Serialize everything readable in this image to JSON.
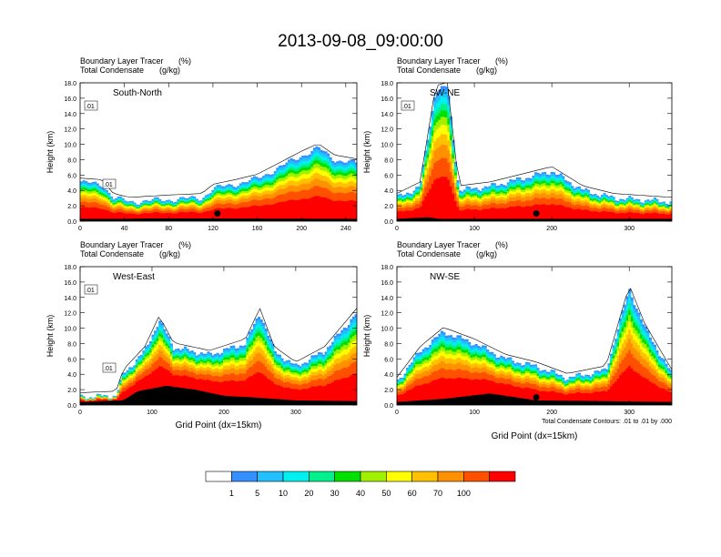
{
  "figure": {
    "title": "2013-09-08_09:00:00",
    "footnote": "Total Condensate Contours: .01 to .01 by .000",
    "colorbar": {
      "levels": [
        "1",
        "5",
        "10",
        "20",
        "30",
        "40",
        "50",
        "60",
        "70",
        "100"
      ],
      "colors": [
        "#ffffff",
        "#3590ff",
        "#22c0ff",
        "#00f0f0",
        "#00f08c",
        "#00e000",
        "#a0f000",
        "#ffff00",
        "#ffc000",
        "#ff9000",
        "#ff5000",
        "#ff0000"
      ]
    }
  },
  "chart_data": [
    {
      "type": "heatmap",
      "panel": "top-left",
      "label_left_line1": "Boundary Layer Tracer",
      "label_right_line1": "(%)",
      "label_left_line2": "Total Condensate",
      "label_right_line2": "(g/kg)",
      "section": "South-North",
      "ylabel": "Height (km)",
      "xlabel": "",
      "xlim": [
        0,
        250
      ],
      "ylim": [
        0,
        18
      ],
      "xticks": [
        "0",
        "40",
        "80",
        "120",
        "160",
        "200",
        "240"
      ],
      "yticks": [
        "0.0",
        "2.0",
        "4.0",
        "6.0",
        "8.0",
        "10.0",
        "12.0",
        "14.0",
        "16.0",
        "18.0"
      ],
      "contour_labels": [
        ".01",
        ".01"
      ],
      "marker_x": 124,
      "marker_y": 1.0,
      "bl_top_km": [
        [
          0,
          5.0
        ],
        [
          20,
          4.8
        ],
        [
          30,
          3.0
        ],
        [
          45,
          2.5
        ],
        [
          80,
          2.8
        ],
        [
          110,
          3.0
        ],
        [
          120,
          4.2
        ],
        [
          140,
          4.8
        ],
        [
          160,
          5.5
        ],
        [
          180,
          7.0
        ],
        [
          200,
          8.5
        ],
        [
          215,
          9.5
        ],
        [
          230,
          8.0
        ],
        [
          250,
          7.5
        ]
      ],
      "terrain_km": [
        [
          0,
          0.3
        ],
        [
          40,
          0.3
        ],
        [
          60,
          0.35
        ],
        [
          120,
          0.35
        ],
        [
          250,
          0.3
        ]
      ]
    },
    {
      "type": "heatmap",
      "panel": "top-right",
      "label_left_line1": "Boundary Layer Tracer",
      "label_right_line1": "(%)",
      "label_left_line2": "Total Condensate",
      "label_right_line2": "(g/kg)",
      "section": "SW-NE",
      "ylabel": "Height (km)",
      "xlabel": "",
      "xlim": [
        0,
        355
      ],
      "ylim": [
        0,
        18
      ],
      "xticks": [
        "0",
        "100",
        "200",
        "300"
      ],
      "yticks": [
        "0.0",
        "2.0",
        "4.0",
        "6.0",
        "8.0",
        "10.0",
        "12.0",
        "14.0",
        "16.0",
        "18.0"
      ],
      "contour_labels": [
        ".01"
      ],
      "marker_x": 180,
      "marker_y": 1.0,
      "bl_top_km": [
        [
          0,
          3.0
        ],
        [
          30,
          4.5
        ],
        [
          50,
          17.0
        ],
        [
          65,
          17.5
        ],
        [
          80,
          4.0
        ],
        [
          120,
          4.5
        ],
        [
          160,
          5.5
        ],
        [
          200,
          6.5
        ],
        [
          240,
          4.0
        ],
        [
          280,
          3.0
        ],
        [
          355,
          2.5
        ]
      ],
      "terrain_km": [
        [
          0,
          0.3
        ],
        [
          40,
          0.5
        ],
        [
          55,
          0.3
        ],
        [
          355,
          0.3
        ]
      ]
    },
    {
      "type": "heatmap",
      "panel": "bottom-left",
      "label_left_line1": "Boundary Layer Tracer",
      "label_right_line1": "(%)",
      "label_left_line2": "Total Condensate",
      "label_right_line2": "(g/kg)",
      "section": "West-East",
      "ylabel": "Height (km)",
      "xlabel": "Grid Point (dx=15km)",
      "xlim": [
        0,
        385
      ],
      "ylim": [
        0,
        18
      ],
      "xticks": [
        "0",
        "100",
        "200",
        "300"
      ],
      "yticks": [
        "0.0",
        "2.0",
        "4.0",
        "6.0",
        "8.0",
        "10.0",
        "12.0",
        "14.0",
        "16.0",
        "18.0"
      ],
      "contour_labels": [
        ".01",
        ".01"
      ],
      "marker_x": 190,
      "marker_y": 1.0,
      "bl_top_km": [
        [
          0,
          1.0
        ],
        [
          50,
          1.2
        ],
        [
          60,
          4.0
        ],
        [
          90,
          7.0
        ],
        [
          110,
          11.0
        ],
        [
          130,
          7.5
        ],
        [
          180,
          6.5
        ],
        [
          230,
          8.0
        ],
        [
          250,
          12.0
        ],
        [
          270,
          7.0
        ],
        [
          300,
          5.0
        ],
        [
          340,
          7.0
        ],
        [
          385,
          12.0
        ]
      ],
      "terrain_km": [
        [
          0,
          0.4
        ],
        [
          60,
          0.6
        ],
        [
          80,
          1.8
        ],
        [
          120,
          2.5
        ],
        [
          160,
          2.0
        ],
        [
          200,
          1.2
        ],
        [
          240,
          1.0
        ],
        [
          300,
          0.6
        ],
        [
          385,
          0.5
        ]
      ]
    },
    {
      "type": "heatmap",
      "panel": "bottom-right",
      "label_left_line1": "Boundary Layer Tracer",
      "label_right_line1": "(%)",
      "label_left_line2": "Total Condensate",
      "label_right_line2": "(g/kg)",
      "section": "NW-SE",
      "ylabel": "Height (km)",
      "xlabel": "Grid Point (dx=15km)",
      "xlim": [
        0,
        355
      ],
      "ylim": [
        0,
        18
      ],
      "xticks": [
        "0",
        "100",
        "200",
        "300"
      ],
      "yticks": [
        "0.0",
        "2.0",
        "4.0",
        "6.0",
        "8.0",
        "10.0",
        "12.0",
        "14.0",
        "16.0",
        "18.0"
      ],
      "contour_labels": [],
      "marker_x": 180,
      "marker_y": 1.0,
      "bl_top_km": [
        [
          0,
          3.0
        ],
        [
          30,
          7.0
        ],
        [
          60,
          9.5
        ],
        [
          100,
          8.0
        ],
        [
          140,
          6.0
        ],
        [
          180,
          5.0
        ],
        [
          220,
          3.5
        ],
        [
          270,
          4.5
        ],
        [
          300,
          15.0
        ],
        [
          320,
          10.0
        ],
        [
          355,
          4.0
        ]
      ],
      "terrain_km": [
        [
          0,
          0.4
        ],
        [
          60,
          0.8
        ],
        [
          120,
          1.5
        ],
        [
          180,
          0.6
        ],
        [
          355,
          0.4
        ]
      ]
    }
  ]
}
